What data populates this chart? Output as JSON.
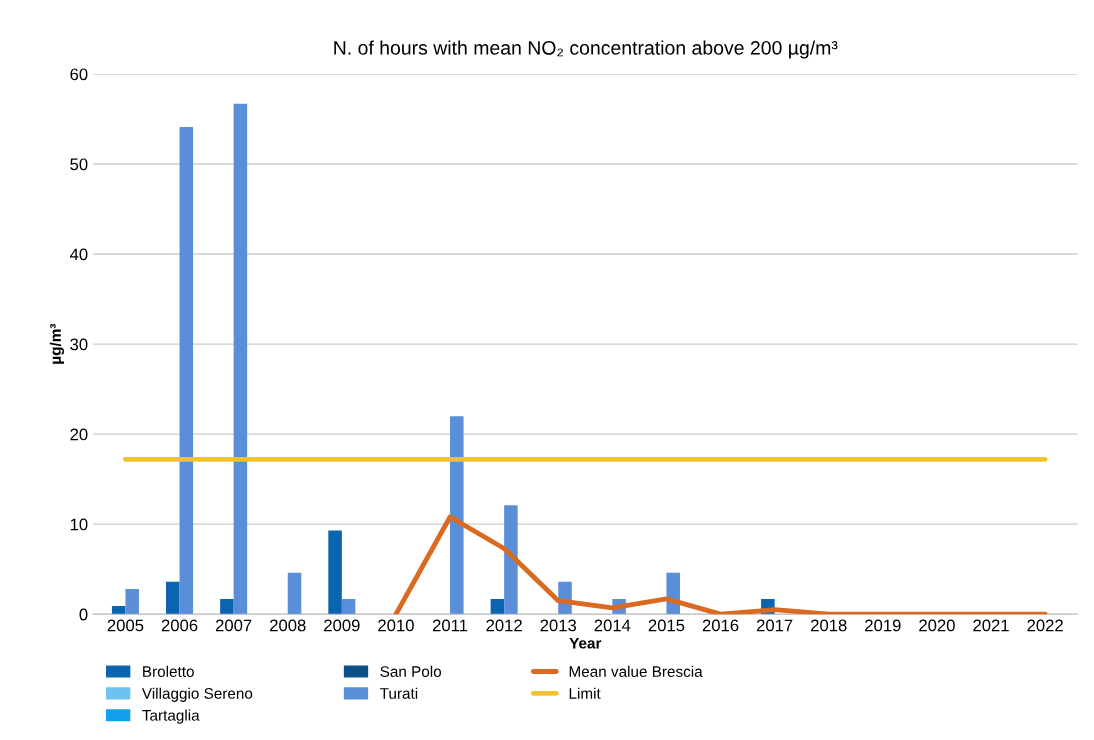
{
  "chart_data": {
    "type": "bar",
    "title": "N. of hours with mean NO₂ concentration above 200 µg/m³",
    "xlabel": "Year",
    "ylabel": "µg/m³",
    "categories": [
      "2005",
      "2006",
      "2007",
      "2008",
      "2009",
      "2010",
      "2011",
      "2012",
      "2013",
      "2014",
      "2015",
      "2016",
      "2017",
      "2018",
      "2019",
      "2020",
      "2021",
      "2022"
    ],
    "series": [
      {
        "name": "Broletto",
        "color": "#0a64b0",
        "values": [
          0.9,
          3.6,
          1.7,
          null,
          9.3,
          null,
          null,
          1.7,
          null,
          null,
          null,
          null,
          1.7,
          null,
          null,
          null,
          null,
          null
        ]
      },
      {
        "name": "Villaggio Sereno",
        "color": "#6cc3f0",
        "values": [
          null,
          null,
          null,
          null,
          null,
          null,
          null,
          null,
          null,
          null,
          null,
          null,
          null,
          null,
          null,
          null,
          null,
          null
        ]
      },
      {
        "name": "Tartaglia",
        "color": "#12a0ee",
        "values": [
          null,
          null,
          null,
          null,
          null,
          null,
          null,
          null,
          null,
          null,
          null,
          null,
          null,
          null,
          null,
          null,
          null,
          null
        ]
      },
      {
        "name": "San Polo",
        "color": "#0b4f86",
        "values": [
          null,
          null,
          null,
          null,
          null,
          null,
          null,
          null,
          null,
          null,
          null,
          null,
          null,
          null,
          null,
          null,
          null,
          null
        ]
      },
      {
        "name": "Turati",
        "color": "#5b8ed8",
        "values": [
          2.8,
          54.1,
          56.7,
          4.6,
          1.7,
          null,
          22,
          12.1,
          3.6,
          1.7,
          4.6,
          null,
          null,
          null,
          null,
          null,
          null,
          null
        ]
      },
      {
        "name": "Mean value Brescia",
        "type": "line",
        "color": "#d96a20",
        "values": [
          null,
          null,
          null,
          null,
          null,
          0,
          10.8,
          7.3,
          1.5,
          0.7,
          1.7,
          0,
          0.5,
          0,
          0,
          0,
          0,
          0
        ]
      },
      {
        "name": "Limit",
        "type": "line",
        "color": "#f2c12e",
        "values": [
          17.2,
          17.2,
          17.2,
          17.2,
          17.2,
          17.2,
          17.2,
          17.2,
          17.2,
          17.2,
          17.2,
          17.2,
          17.2,
          17.2,
          17.2,
          17.2,
          17.2,
          17.2
        ]
      }
    ],
    "ylim": [
      0,
      60
    ],
    "yticks": [
      0,
      10,
      20,
      30,
      40,
      50,
      60
    ],
    "grid": "y",
    "legend": "bottom"
  }
}
